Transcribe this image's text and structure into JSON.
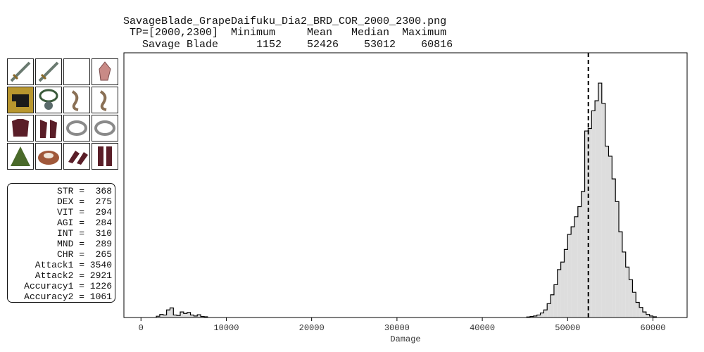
{
  "header": {
    "title": "SavageBlade_GrapeDaifuku_Dia2_BRD_COR_2000_2300.png",
    "table_header": " TP=[2000,2300]  Minimum     Mean   Median  Maximum",
    "table_row": "   Savage Blade      1152    52426    53012    60816"
  },
  "stats": [
    "STR =  368",
    "DEX =  275",
    "VIT =  294",
    "AGI =  284",
    "INT =  310",
    "MND =  289",
    "CHR =  265",
    "Attack1 = 3540",
    "Attack2 = 2921",
    "Accuracy1 = 1226",
    "Accuracy2 = 1061"
  ],
  "gear_icons": [
    "sword-icon",
    "sword-icon",
    "empty-slot",
    "crystal-icon",
    "helmet-icon",
    "necklace-icon",
    "earring-icon",
    "earring-icon",
    "body-armor-icon",
    "gloves-icon",
    "ring-icon",
    "ring-icon",
    "cape-icon",
    "belt-icon",
    "legs-icon",
    "feet-icon"
  ],
  "colors": {
    "fill": "#dddddd",
    "outline": "#000000",
    "mean_line": "#000000"
  },
  "chart_data": {
    "type": "histogram",
    "xlabel": "Damage",
    "xlim": [
      -2000,
      64000
    ],
    "ylim": [
      0,
      1
    ],
    "xticks": [
      0,
      10000,
      20000,
      30000,
      40000,
      50000,
      60000
    ],
    "mean_line_x": 52426,
    "bin_width": 400,
    "bins": [
      {
        "x": 1800,
        "y": 0.005
      },
      {
        "x": 2200,
        "y": 0.012
      },
      {
        "x": 2600,
        "y": 0.01
      },
      {
        "x": 3000,
        "y": 0.03
      },
      {
        "x": 3400,
        "y": 0.038
      },
      {
        "x": 3800,
        "y": 0.01
      },
      {
        "x": 4200,
        "y": 0.008
      },
      {
        "x": 4600,
        "y": 0.022
      },
      {
        "x": 5000,
        "y": 0.016
      },
      {
        "x": 5400,
        "y": 0.02
      },
      {
        "x": 5800,
        "y": 0.01
      },
      {
        "x": 6200,
        "y": 0.006
      },
      {
        "x": 6600,
        "y": 0.011
      },
      {
        "x": 7000,
        "y": 0.004
      },
      {
        "x": 7400,
        "y": 0.003
      },
      {
        "x": 45200,
        "y": 0.002
      },
      {
        "x": 45600,
        "y": 0.004
      },
      {
        "x": 46000,
        "y": 0.006
      },
      {
        "x": 46400,
        "y": 0.01
      },
      {
        "x": 46800,
        "y": 0.018
      },
      {
        "x": 47200,
        "y": 0.03
      },
      {
        "x": 47600,
        "y": 0.055
      },
      {
        "x": 48000,
        "y": 0.09
      },
      {
        "x": 48400,
        "y": 0.13
      },
      {
        "x": 48800,
        "y": 0.19
      },
      {
        "x": 49200,
        "y": 0.22
      },
      {
        "x": 49600,
        "y": 0.27
      },
      {
        "x": 50000,
        "y": 0.33
      },
      {
        "x": 50400,
        "y": 0.36
      },
      {
        "x": 50800,
        "y": 0.4
      },
      {
        "x": 51200,
        "y": 0.44
      },
      {
        "x": 51600,
        "y": 0.5
      },
      {
        "x": 52000,
        "y": 0.74
      },
      {
        "x": 52400,
        "y": 0.75
      },
      {
        "x": 52800,
        "y": 0.82
      },
      {
        "x": 53200,
        "y": 0.86
      },
      {
        "x": 53600,
        "y": 0.93
      },
      {
        "x": 54000,
        "y": 0.85
      },
      {
        "x": 54400,
        "y": 0.68
      },
      {
        "x": 54800,
        "y": 0.64
      },
      {
        "x": 55200,
        "y": 0.55
      },
      {
        "x": 55600,
        "y": 0.46
      },
      {
        "x": 56000,
        "y": 0.34
      },
      {
        "x": 56400,
        "y": 0.26
      },
      {
        "x": 56800,
        "y": 0.2
      },
      {
        "x": 57200,
        "y": 0.15
      },
      {
        "x": 57600,
        "y": 0.1
      },
      {
        "x": 58000,
        "y": 0.06
      },
      {
        "x": 58400,
        "y": 0.04
      },
      {
        "x": 58800,
        "y": 0.022
      },
      {
        "x": 59200,
        "y": 0.012
      },
      {
        "x": 59600,
        "y": 0.006
      },
      {
        "x": 60000,
        "y": 0.003
      }
    ]
  }
}
